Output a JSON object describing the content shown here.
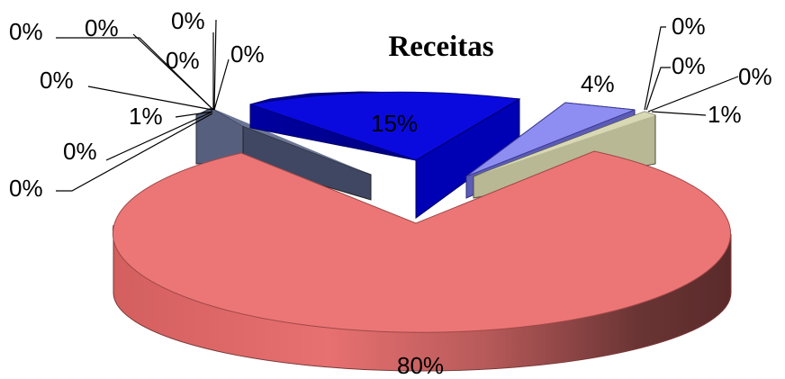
{
  "chart_data": {
    "type": "pie",
    "style": "3d-exploded",
    "title": "Receitas",
    "slices": [
      {
        "value": 80,
        "label": "80%",
        "color": "#ec7676"
      },
      {
        "value": 15,
        "label": "15%",
        "color": "#0a0adf"
      },
      {
        "value": 4,
        "label": "4%",
        "color": "#8c8cf0"
      },
      {
        "value": 1,
        "label": "1%",
        "color": "#aeae8c"
      },
      {
        "value": 1,
        "label": "1%",
        "color": "#505a78"
      },
      {
        "value": 0,
        "label": "0%",
        "color": "#000000"
      },
      {
        "value": 0,
        "label": "0%",
        "color": "#000000"
      },
      {
        "value": 0,
        "label": "0%",
        "color": "#000000"
      },
      {
        "value": 0,
        "label": "0%",
        "color": "#000000"
      },
      {
        "value": 0,
        "label": "0%",
        "color": "#000000"
      },
      {
        "value": 0,
        "label": "0%",
        "color": "#000000"
      },
      {
        "value": 0,
        "label": "0%",
        "color": "#000000"
      },
      {
        "value": 0,
        "label": "0%",
        "color": "#000000"
      },
      {
        "value": 0,
        "label": "0%",
        "color": "#000000"
      },
      {
        "value": 0,
        "label": "0%",
        "color": "#000000"
      }
    ]
  }
}
